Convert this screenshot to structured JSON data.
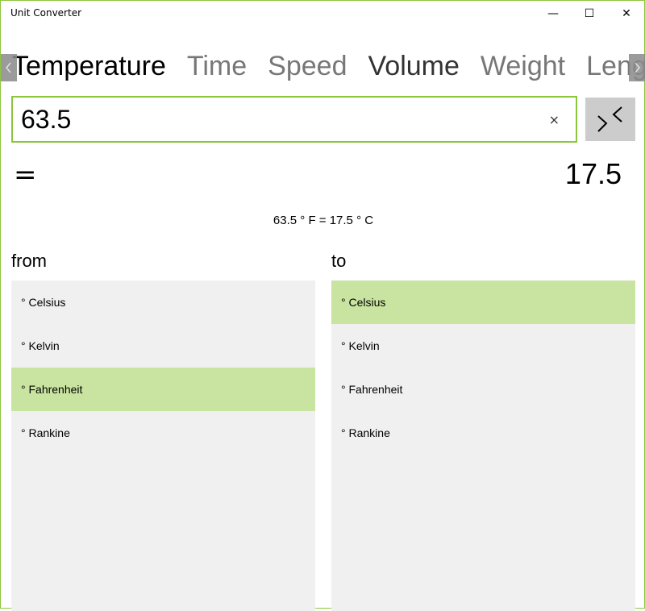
{
  "window": {
    "title": "Unit Converter",
    "minimize": "—",
    "maximize": "☐",
    "close": "✕"
  },
  "tabs": [
    {
      "label": "Temperature",
      "state": "active"
    },
    {
      "label": "Time"
    },
    {
      "label": "Speed"
    },
    {
      "label": "Volume",
      "state": "hover"
    },
    {
      "label": "Weight"
    },
    {
      "label": "Length"
    }
  ],
  "input": {
    "value": "63.5",
    "clear": "×"
  },
  "equals": "=",
  "result": "17.5",
  "formula": "63.5 ° F = 17.5 ° C",
  "from": {
    "label": "from",
    "items": [
      "° Celsius",
      "° Kelvin",
      "° Fahrenheit",
      "° Rankine"
    ],
    "selected": 2
  },
  "to": {
    "label": "to",
    "items": [
      "° Celsius",
      "° Kelvin",
      "° Fahrenheit",
      "° Rankine"
    ],
    "selected": 0
  },
  "colors": {
    "accent": "#8cc63f",
    "selected": "#c9e4a0",
    "list_bg": "#f0f0f0"
  }
}
